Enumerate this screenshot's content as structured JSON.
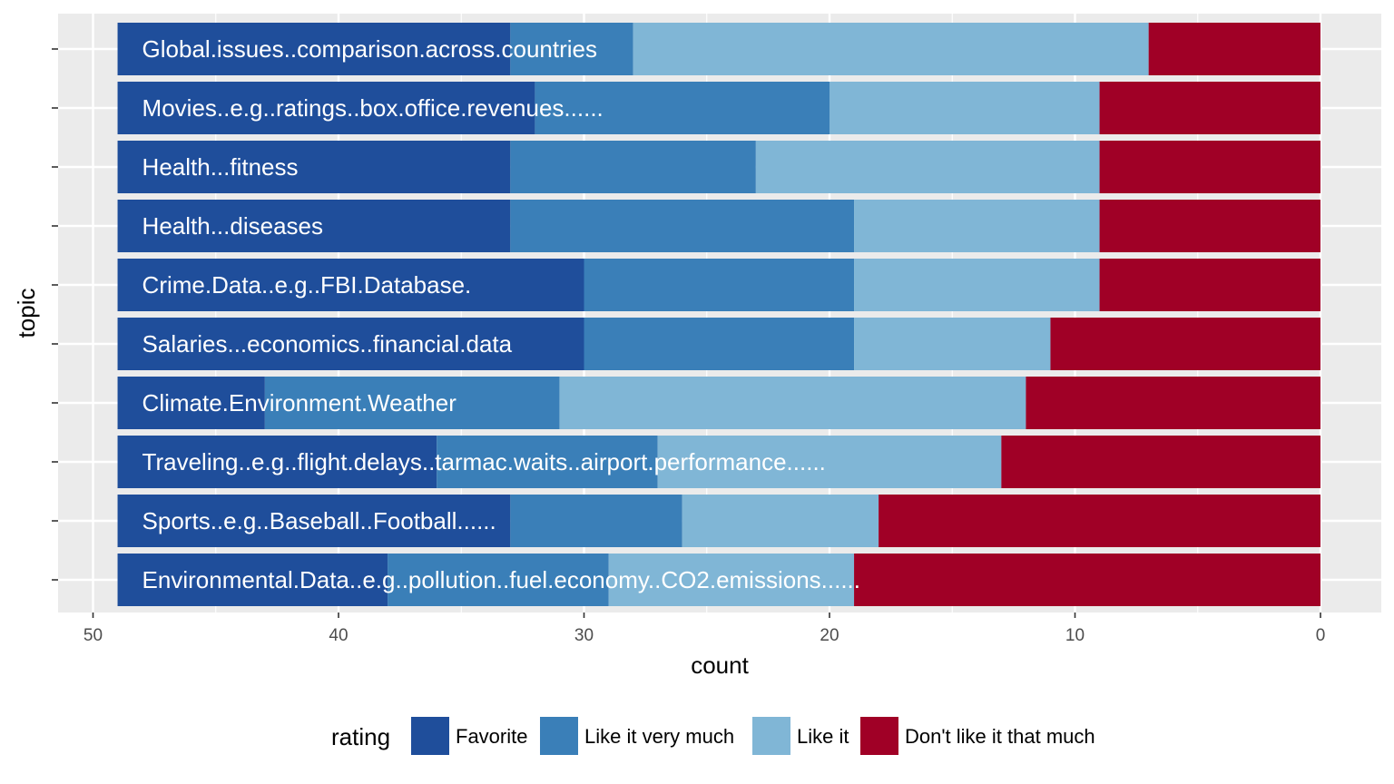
{
  "chart_data": {
    "type": "bar",
    "orientation": "horizontal",
    "stacked": true,
    "x_reversed": true,
    "xlabel": "count",
    "ylabel": "topic",
    "xlim": [
      0,
      51
    ],
    "x_ticks": [
      50,
      40,
      30,
      20,
      10,
      0
    ],
    "grid": true,
    "legend_title": "rating",
    "legend_position": "bottom",
    "categories": [
      "Global.issues..comparison.across.countries",
      "Movies..e.g..ratings..box.office.revenues......",
      "Health...fitness",
      "Health...diseases",
      "Crime.Data..e.g..FBI.Database.",
      "Salaries...economics..financial.data",
      "Climate.Environment.Weather",
      "Traveling..e.g..flight.delays..tarmac.waits..airport.performance......",
      "Sports..e.g..Baseball..Football......",
      "Environmental.Data..e.g..pollution..fuel.economy..CO2.emissions......"
    ],
    "series": [
      {
        "name": "Favorite",
        "color": "#1f4e9b",
        "values": [
          16,
          17,
          16,
          16,
          19,
          19,
          6,
          13,
          16,
          11
        ]
      },
      {
        "name": "Like it very much",
        "color": "#3a7fb8",
        "values": [
          5,
          12,
          10,
          14,
          11,
          11,
          12,
          9,
          7,
          9
        ]
      },
      {
        "name": "Like it",
        "color": "#80b6d6",
        "values": [
          21,
          11,
          14,
          10,
          10,
          8,
          19,
          14,
          8,
          10
        ]
      },
      {
        "name": "Don't like it that much",
        "color": "#a00026",
        "values": [
          7,
          9,
          9,
          9,
          9,
          11,
          12,
          13,
          18,
          19
        ]
      }
    ]
  }
}
